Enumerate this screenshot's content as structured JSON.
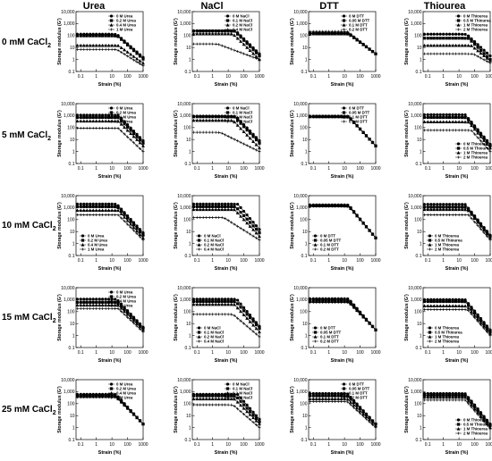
{
  "figure": {
    "columns": [
      "Urea",
      "NaCl",
      "DTT",
      "Thiourea"
    ],
    "rows": [
      {
        "label": "0 mM CaCl",
        "sub": "2"
      },
      {
        "label": "5 mM CaCl",
        "sub": "2"
      },
      {
        "label": "10 mM CaCl",
        "sub": "2"
      },
      {
        "label": "15 mM CaCl",
        "sub": "2"
      },
      {
        "label": "25 mM CaCl",
        "sub": "2"
      }
    ],
    "ylabel": "Storage modulus (G')",
    "xlabel": "Strain (%)",
    "yticks": [
      "0.1",
      "1",
      "10",
      "100",
      "1,000",
      "10,000"
    ],
    "xticks": [
      "0.1",
      "1",
      "10",
      "100",
      "1000"
    ],
    "markers": [
      "filled-circle",
      "filled-square",
      "filled-triangle",
      "cross"
    ],
    "colors": {
      "line": "#000000",
      "axis": "#000000"
    }
  },
  "chart_data": [
    {
      "type": "line",
      "column": "Urea",
      "row": "0 mM CaCl2",
      "xlabel": "Strain (%)",
      "ylabel": "Storage modulus (G')",
      "xscale": "log",
      "yscale": "log",
      "xlim": [
        0.05,
        1000
      ],
      "ylim": [
        0.1,
        10000
      ],
      "legend": "top-right",
      "series": [
        {
          "name": "0 M Urea",
          "plateau": 130,
          "knee": 20,
          "end": 1.5
        },
        {
          "name": "0.2 M Urea",
          "plateau": 95,
          "knee": 22,
          "end": 1.1
        },
        {
          "name": "0.4 M Urea",
          "plateau": 15,
          "knee": 25,
          "end": 0.5
        },
        {
          "name": "1 M Urea",
          "plateau": 7,
          "knee": 20,
          "end": 0.3
        }
      ]
    },
    {
      "type": "line",
      "column": "NaCl",
      "row": "0 mM CaCl2",
      "xlabel": "Strain (%)",
      "ylabel": "Storage modulus (G')",
      "xscale": "log",
      "yscale": "log",
      "xlim": [
        0.05,
        1000
      ],
      "ylim": [
        0.1,
        10000
      ],
      "legend": "top-right",
      "series": [
        {
          "name": "0 M NaCl",
          "plateau": 250,
          "knee": 30,
          "end": 3
        },
        {
          "name": "0.1 M NaCl",
          "plateau": 240,
          "knee": 25,
          "end": 2
        },
        {
          "name": "0.2 M NaCl",
          "plateau": 140,
          "knee": 20,
          "end": 1
        },
        {
          "name": "0.4 M NaCl",
          "plateau": 20,
          "knee": 2,
          "end": 1
        }
      ]
    },
    {
      "type": "line",
      "column": "DTT",
      "row": "0 mM CaCl2",
      "xlabel": "Strain (%)",
      "ylabel": "Storage modulus (G')",
      "xscale": "log",
      "yscale": "log",
      "xlim": [
        0.05,
        1000
      ],
      "ylim": [
        0.1,
        10000
      ],
      "legend": "top-right",
      "series": [
        {
          "name": "0 M DTT",
          "plateau": 160,
          "knee": 18,
          "end": 3
        },
        {
          "name": "0.05 M DTT",
          "plateau": 150,
          "knee": 18,
          "end": 3
        },
        {
          "name": "0.1 M DTT",
          "plateau": 140,
          "knee": 18,
          "end": 3
        },
        {
          "name": "0.2 M DTT",
          "plateau": 220,
          "knee": 15,
          "end": 3
        }
      ]
    },
    {
      "type": "line",
      "column": "Thiourea",
      "row": "0 mM CaCl2",
      "xlabel": "Strain (%)",
      "ylabel": "Storage modulus (G')",
      "xscale": "log",
      "yscale": "log",
      "xlim": [
        0.05,
        1000
      ],
      "ylim": [
        0.1,
        10000
      ],
      "legend": "top-right",
      "series": [
        {
          "name": "0 M Thiourea",
          "plateau": 130,
          "knee": 30,
          "end": 2
        },
        {
          "name": "0.5 M Thiourea",
          "plateau": 60,
          "knee": 40,
          "end": 1
        },
        {
          "name": "1 M Thiourea",
          "plateau": 15,
          "knee": 60,
          "end": 0.8
        },
        {
          "name": "2 M Thiourea",
          "plateau": 3,
          "knee": 80,
          "end": 0.5
        }
      ]
    },
    {
      "type": "line",
      "column": "Urea",
      "row": "5 mM CaCl2",
      "xlabel": "Strain (%)",
      "ylabel": "Storage modulus (G')",
      "xscale": "log",
      "yscale": "log",
      "xlim": [
        0.05,
        1000
      ],
      "ylim": [
        0.1,
        10000
      ],
      "legend": "top-right",
      "series": [
        {
          "name": "0 M Urea",
          "plateau": 1100,
          "knee": 25,
          "end": 8
        },
        {
          "name": "0.2 M Urea",
          "plateau": 700,
          "knee": 25,
          "end": 5
        },
        {
          "name": "0.4 M Urea",
          "plateau": 350,
          "knee": 25,
          "end": 3
        },
        {
          "name": "1 M Urea",
          "plateau": 90,
          "knee": 25,
          "end": 1
        }
      ]
    },
    {
      "type": "line",
      "column": "NaCl",
      "row": "5 mM CaCl2",
      "xlabel": "Strain (%)",
      "ylabel": "Storage modulus (G')",
      "xscale": "log",
      "yscale": "log",
      "xlim": [
        0.05,
        1000
      ],
      "ylim": [
        0.1,
        10000
      ],
      "legend": "top-right",
      "series": [
        {
          "name": "0 M NaCl",
          "plateau": 900,
          "knee": 30,
          "end": 8
        },
        {
          "name": "0.1 M NaCl",
          "plateau": 800,
          "knee": 25,
          "end": 5
        },
        {
          "name": "0.2 M NaCl",
          "plateau": 400,
          "knee": 20,
          "end": 2
        },
        {
          "name": "0.4 M NaCl",
          "plateau": 40,
          "knee": 3,
          "end": 1
        }
      ]
    },
    {
      "type": "line",
      "column": "DTT",
      "row": "5 mM CaCl2",
      "xlabel": "Strain (%)",
      "ylabel": "Storage modulus (G')",
      "xscale": "log",
      "yscale": "log",
      "xlim": [
        0.05,
        1000
      ],
      "ylim": [
        0.1,
        10000
      ],
      "legend": "top-right",
      "series": [
        {
          "name": "0 M DTT",
          "plateau": 900,
          "knee": 18,
          "end": 3
        },
        {
          "name": "0.05 M DTT",
          "plateau": 850,
          "knee": 18,
          "end": 3
        },
        {
          "name": "0.1 M DTT",
          "plateau": 800,
          "knee": 18,
          "end": 3
        },
        {
          "name": "0.2 M DTT",
          "plateau": 750,
          "knee": 18,
          "end": 3
        }
      ]
    },
    {
      "type": "line",
      "column": "Thiourea",
      "row": "5 mM CaCl2",
      "xlabel": "Strain (%)",
      "ylabel": "Storage modulus (G')",
      "xscale": "log",
      "yscale": "log",
      "xlim": [
        0.05,
        1000
      ],
      "ylim": [
        0.1,
        10000
      ],
      "legend": "bottom-right",
      "series": [
        {
          "name": "0 M Thiourea",
          "plateau": 1200,
          "knee": 25,
          "end": 4
        },
        {
          "name": "0.5 M Thiourea",
          "plateau": 700,
          "knee": 30,
          "end": 3
        },
        {
          "name": "1 M Thiourea",
          "plateau": 300,
          "knee": 40,
          "end": 2
        },
        {
          "name": "2 M Thiourea",
          "plateau": 60,
          "knee": 60,
          "end": 1
        }
      ]
    },
    {
      "type": "line",
      "column": "Urea",
      "row": "10 mM CaCl2",
      "xlabel": "Strain (%)",
      "ylabel": "Storage modulus (G')",
      "xscale": "log",
      "yscale": "log",
      "xlim": [
        0.05,
        1000
      ],
      "ylim": [
        0.1,
        10000
      ],
      "legend": "bottom-left",
      "series": [
        {
          "name": "0 M Urea",
          "plateau": 2000,
          "knee": 20,
          "end": 8
        },
        {
          "name": "0.2 M Urea",
          "plateau": 1200,
          "knee": 22,
          "end": 5
        },
        {
          "name": "0.4 M Urea",
          "plateau": 600,
          "knee": 25,
          "end": 3
        },
        {
          "name": "1 M Urea",
          "plateau": 250,
          "knee": 25,
          "end": 2
        }
      ]
    },
    {
      "type": "line",
      "column": "NaCl",
      "row": "10 mM CaCl2",
      "xlabel": "Strain (%)",
      "ylabel": "Storage modulus (G')",
      "xscale": "log",
      "yscale": "log",
      "xlim": [
        0.05,
        1000
      ],
      "ylim": [
        0.1,
        10000
      ],
      "legend": "bottom-left",
      "series": [
        {
          "name": "0 M NaCl",
          "plateau": 2000,
          "knee": 40,
          "end": 15
        },
        {
          "name": "0.1 M NaCl",
          "plateau": 1200,
          "knee": 30,
          "end": 8
        },
        {
          "name": "0.2 M NaCl",
          "plateau": 700,
          "knee": 25,
          "end": 4
        },
        {
          "name": "0.4 M NaCl",
          "plateau": 150,
          "knee": 5,
          "end": 2
        }
      ]
    },
    {
      "type": "line",
      "column": "DTT",
      "row": "10 mM CaCl2",
      "xlabel": "Strain (%)",
      "ylabel": "Storage modulus (G')",
      "xscale": "log",
      "yscale": "log",
      "xlim": [
        0.05,
        1000
      ],
      "ylim": [
        0.1,
        10000
      ],
      "legend": "bottom-left",
      "series": [
        {
          "name": "0 M DTT",
          "plateau": 1700,
          "knee": 18,
          "end": 3
        },
        {
          "name": "0.05 M DTT",
          "plateau": 1500,
          "knee": 18,
          "end": 3
        },
        {
          "name": "0.1 M DTT",
          "plateau": 1400,
          "knee": 18,
          "end": 3
        },
        {
          "name": "0.2 M DTT",
          "plateau": 1300,
          "knee": 18,
          "end": 3
        }
      ]
    },
    {
      "type": "line",
      "column": "Thiourea",
      "row": "10 mM CaCl2",
      "xlabel": "Strain (%)",
      "ylabel": "Storage modulus (G')",
      "xscale": "log",
      "yscale": "log",
      "xlim": [
        0.05,
        1000
      ],
      "ylim": [
        0.1,
        10000
      ],
      "legend": "bottom-left",
      "series": [
        {
          "name": "0 M Thiourea",
          "plateau": 1900,
          "knee": 25,
          "end": 5
        },
        {
          "name": "0.5 M Thiourea",
          "plateau": 1100,
          "knee": 30,
          "end": 4
        },
        {
          "name": "1 M Thiourea",
          "plateau": 700,
          "knee": 35,
          "end": 3
        },
        {
          "name": "2 M Thiourea",
          "plateau": 250,
          "knee": 40,
          "end": 2
        }
      ]
    },
    {
      "type": "line",
      "column": "Urea",
      "row": "15 mM CaCl2",
      "xlabel": "Strain (%)",
      "ylabel": "Storage modulus (G')",
      "xscale": "log",
      "yscale": "log",
      "xlim": [
        0.05,
        1000
      ],
      "ylim": [
        0.1,
        10000
      ],
      "legend": "top-right",
      "series": [
        {
          "name": "0 M Urea",
          "plateau": 1100,
          "knee": 20,
          "end": 5
        },
        {
          "name": "0.2 M Urea",
          "plateau": 600,
          "knee": 22,
          "end": 4
        },
        {
          "name": "0.4 M Urea",
          "plateau": 350,
          "knee": 25,
          "end": 3
        },
        {
          "name": "1 M Urea",
          "plateau": 180,
          "knee": 25,
          "end": 2
        }
      ]
    },
    {
      "type": "line",
      "column": "NaCl",
      "row": "15 mM CaCl2",
      "xlabel": "Strain (%)",
      "ylabel": "Storage modulus (G')",
      "xscale": "log",
      "yscale": "log",
      "xlim": [
        0.05,
        1000
      ],
      "ylim": [
        0.1,
        10000
      ],
      "legend": "bottom-left",
      "series": [
        {
          "name": "0 M NaCl",
          "plateau": 1100,
          "knee": 35,
          "end": 6
        },
        {
          "name": "0.1 M NaCl",
          "plateau": 700,
          "knee": 30,
          "end": 4
        },
        {
          "name": "0.2 M NaCl",
          "plateau": 400,
          "knee": 25,
          "end": 2
        },
        {
          "name": "0.4 M NaCl",
          "plateau": 60,
          "knee": 20,
          "end": 0.8
        }
      ]
    },
    {
      "type": "line",
      "column": "DTT",
      "row": "15 mM CaCl2",
      "xlabel": "Strain (%)",
      "ylabel": "Storage modulus (G')",
      "xscale": "log",
      "yscale": "log",
      "xlim": [
        0.05,
        1000
      ],
      "ylim": [
        0.1,
        10000
      ],
      "legend": "bottom-left",
      "series": [
        {
          "name": "0 M DTT",
          "plateau": 1200,
          "knee": 18,
          "end": 3
        },
        {
          "name": "0.05 M DTT",
          "plateau": 900,
          "knee": 18,
          "end": 3
        },
        {
          "name": "0.1 M DTT",
          "plateau": 700,
          "knee": 18,
          "end": 3
        },
        {
          "name": "0.2 M DTT",
          "plateau": 600,
          "knee": 18,
          "end": 3
        }
      ]
    },
    {
      "type": "line",
      "column": "Thiourea",
      "row": "15 mM CaCl2",
      "xlabel": "Strain (%)",
      "ylabel": "Storage modulus (G')",
      "xscale": "log",
      "yscale": "log",
      "xlim": [
        0.05,
        1000
      ],
      "ylim": [
        0.1,
        10000
      ],
      "legend": "bottom-left",
      "series": [
        {
          "name": "0 M Thiourea",
          "plateau": 1000,
          "knee": 25,
          "end": 3
        },
        {
          "name": "0.5 M Thiourea",
          "plateau": 700,
          "knee": 25,
          "end": 2
        },
        {
          "name": "1 M Thiourea",
          "plateau": 300,
          "knee": 30,
          "end": 1.5
        },
        {
          "name": "2 M Thiourea",
          "plateau": 150,
          "knee": 35,
          "end": 1
        }
      ]
    },
    {
      "type": "line",
      "column": "Urea",
      "row": "25 mM CaCl2",
      "xlabel": "Strain (%)",
      "ylabel": "Storage modulus (G')",
      "xscale": "log",
      "yscale": "log",
      "xlim": [
        0.05,
        1000
      ],
      "ylim": [
        0.1,
        10000
      ],
      "legend": "top-right",
      "series": [
        {
          "name": "0 M Urea",
          "plateau": 600,
          "knee": 18,
          "end": 2
        },
        {
          "name": "0.2 M Urea",
          "plateau": 500,
          "knee": 18,
          "end": 2
        },
        {
          "name": "0.4 M Urea",
          "plateau": 400,
          "knee": 18,
          "end": 2
        },
        {
          "name": "1 M Urea",
          "plateau": 350,
          "knee": 18,
          "end": 2
        }
      ]
    },
    {
      "type": "line",
      "column": "NaCl",
      "row": "25 mM CaCl2",
      "xlabel": "Strain (%)",
      "ylabel": "Storage modulus (G')",
      "xscale": "log",
      "yscale": "log",
      "xlim": [
        0.05,
        1000
      ],
      "ylim": [
        0.1,
        10000
      ],
      "legend": "top-right",
      "series": [
        {
          "name": "0 M NaCl",
          "plateau": 600,
          "knee": 40,
          "end": 5
        },
        {
          "name": "0.1 M NaCl",
          "plateau": 450,
          "knee": 30,
          "end": 3
        },
        {
          "name": "0.2 M NaCl",
          "plateau": 250,
          "knee": 25,
          "end": 2
        },
        {
          "name": "0.4 M NaCl",
          "plateau": 80,
          "knee": 20,
          "end": 1
        }
      ]
    },
    {
      "type": "line",
      "column": "DTT",
      "row": "25 mM CaCl2",
      "xlabel": "Strain (%)",
      "ylabel": "Storage modulus (G')",
      "xscale": "log",
      "yscale": "log",
      "xlim": [
        0.05,
        1000
      ],
      "ylim": [
        0.1,
        10000
      ],
      "legend": "top-right",
      "series": [
        {
          "name": "0 M DTT",
          "plateau": 700,
          "knee": 15,
          "end": 2
        },
        {
          "name": "0.05 M DTT",
          "plateau": 450,
          "knee": 15,
          "end": 2
        },
        {
          "name": "0.1 M DTT",
          "plateau": 250,
          "knee": 15,
          "end": 1.5
        },
        {
          "name": "0.2 M DTT",
          "plateau": 150,
          "knee": 15,
          "end": 1
        }
      ]
    },
    {
      "type": "line",
      "column": "Thiourea",
      "row": "25 mM CaCl2",
      "xlabel": "Strain (%)",
      "ylabel": "Storage modulus (G')",
      "xscale": "log",
      "yscale": "log",
      "xlim": [
        0.05,
        1000
      ],
      "ylim": [
        0.1,
        10000
      ],
      "legend": "bottom-right",
      "series": [
        {
          "name": "0 M Thiourea",
          "plateau": 700,
          "knee": 25,
          "end": 2
        },
        {
          "name": "0.5 M Thiourea",
          "plateau": 500,
          "knee": 25,
          "end": 1.5
        },
        {
          "name": "1 M Thiourea",
          "plateau": 350,
          "knee": 25,
          "end": 1
        },
        {
          "name": "2 M Thiourea",
          "plateau": 200,
          "knee": 25,
          "end": 0.8
        }
      ]
    }
  ]
}
